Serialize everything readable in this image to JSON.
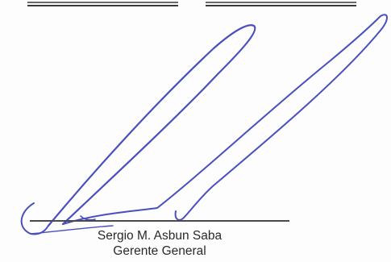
{
  "signature_block": {
    "signer_name": "Sergio M. Asbun Saba",
    "signer_title": "Gerente General"
  },
  "colors": {
    "ink": "#4a4fc0",
    "rule": "#3a3a3a",
    "text": "#2a2a2a",
    "paper": "#fdfdfd"
  }
}
